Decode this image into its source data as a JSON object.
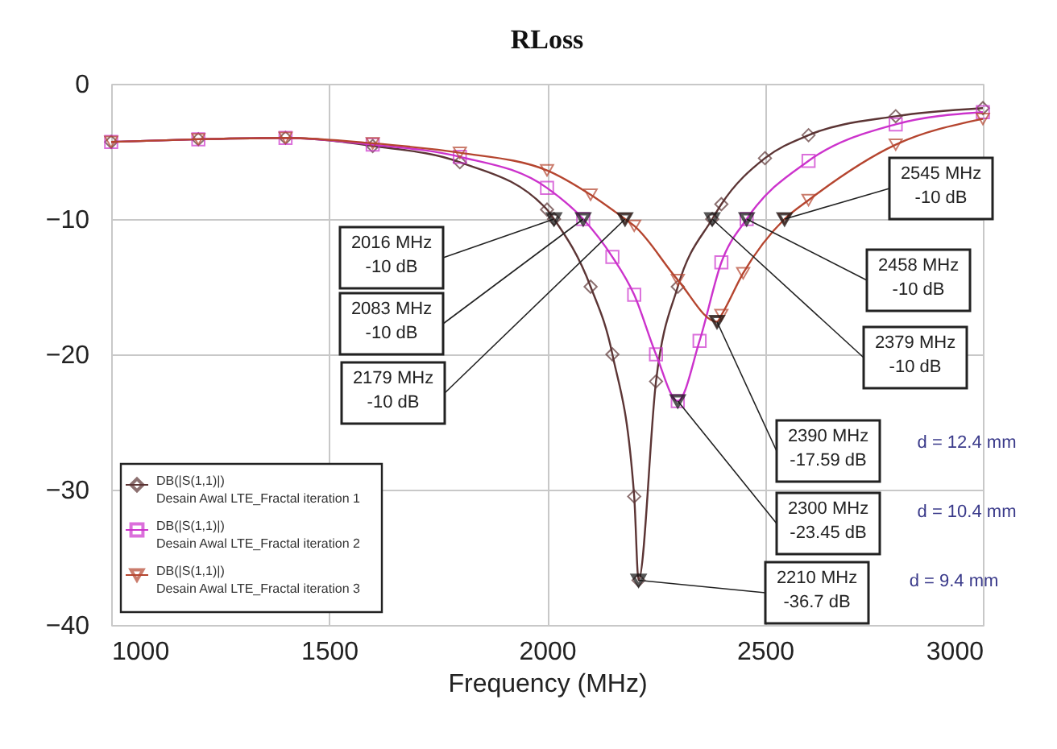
{
  "chart_data": {
    "type": "line",
    "title": "RLoss",
    "xlabel": "Frequency (MHz)",
    "xlim": [
      1000,
      3000
    ],
    "xticks": [
      1000,
      1500,
      2000,
      2500,
      3000
    ],
    "ylim": [
      -40,
      0
    ],
    "yticks": [
      -40,
      -30,
      -20,
      -10,
      0
    ],
    "grid": true,
    "legend": "bottom left",
    "line_style": "solid",
    "series": [
      {
        "name": "DB(|S(1,1)|)\nDesain Awal LTE_Fractal iteration 1",
        "color": "#5c3535",
        "marker": "diamond",
        "x": [
          1000,
          1200,
          1400,
          1600,
          1800,
          2000,
          2016,
          2100,
          2150,
          2200,
          2210,
          2250,
          2300,
          2379,
          2400,
          2500,
          2600,
          2800,
          3000
        ],
        "values": [
          -4.3,
          -4.1,
          -4.0,
          -4.6,
          -5.8,
          -9.3,
          -10,
          -15,
          -20,
          -30.5,
          -36.7,
          -22,
          -15,
          -10,
          -8.9,
          -5.5,
          -3.8,
          -2.4,
          -1.8
        ]
      },
      {
        "name": "DB(|S(1,1)|)\nDesain Awal LTE_Fractal iteration 2",
        "color": "#cc33cc",
        "marker": "square",
        "x": [
          1000,
          1200,
          1400,
          1600,
          1800,
          2000,
          2083,
          2150,
          2200,
          2250,
          2300,
          2350,
          2400,
          2458,
          2600,
          2800,
          3000
        ],
        "values": [
          -4.3,
          -4.1,
          -4.0,
          -4.5,
          -5.4,
          -7.7,
          -10,
          -12.8,
          -15.6,
          -20,
          -23.45,
          -19,
          -13.2,
          -10,
          -5.7,
          -3.0,
          -2.1
        ]
      },
      {
        "name": "DB(|S(1,1)|)\nDesain Awal LTE_Fractal iteration 3",
        "color": "#b5452f",
        "marker": "triangle",
        "x": [
          1000,
          1200,
          1400,
          1600,
          1800,
          2000,
          2100,
          2179,
          2200,
          2300,
          2390,
          2400,
          2450,
          2545,
          2600,
          2800,
          3000
        ],
        "values": [
          -4.3,
          -4.1,
          -4.0,
          -4.4,
          -5.1,
          -6.4,
          -8.2,
          -10,
          -10.5,
          -14.5,
          -17.59,
          -17.1,
          -14,
          -10,
          -8.6,
          -4.5,
          -2.6
        ]
      }
    ],
    "annotations": [
      {
        "text": "2016 MHz\n-10 dB",
        "x": 2016,
        "y": -10
      },
      {
        "text": "2083 MHz\n-10 dB",
        "x": 2083,
        "y": -10
      },
      {
        "text": "2179 MHz\n-10 dB",
        "x": 2179,
        "y": -10
      },
      {
        "text": "2545 MHz\n-10 dB",
        "x": 2545,
        "y": -10
      },
      {
        "text": "2458 MHz\n-10 dB",
        "x": 2458,
        "y": -10
      },
      {
        "text": "2379 MHz\n-10 dB",
        "x": 2379,
        "y": -10
      },
      {
        "text": "2390 MHz\n-17.59 dB",
        "x": 2390,
        "y": -17.59
      },
      {
        "text": "2300 MHz\n-23.45 dB",
        "x": 2300,
        "y": -23.45
      },
      {
        "text": "2210 MHz\n-36.7 dB",
        "x": 2210,
        "y": -36.7
      },
      "d = 12.4 mm",
      "d = 10.4 mm",
      "d = 9.4 mm"
    ]
  }
}
